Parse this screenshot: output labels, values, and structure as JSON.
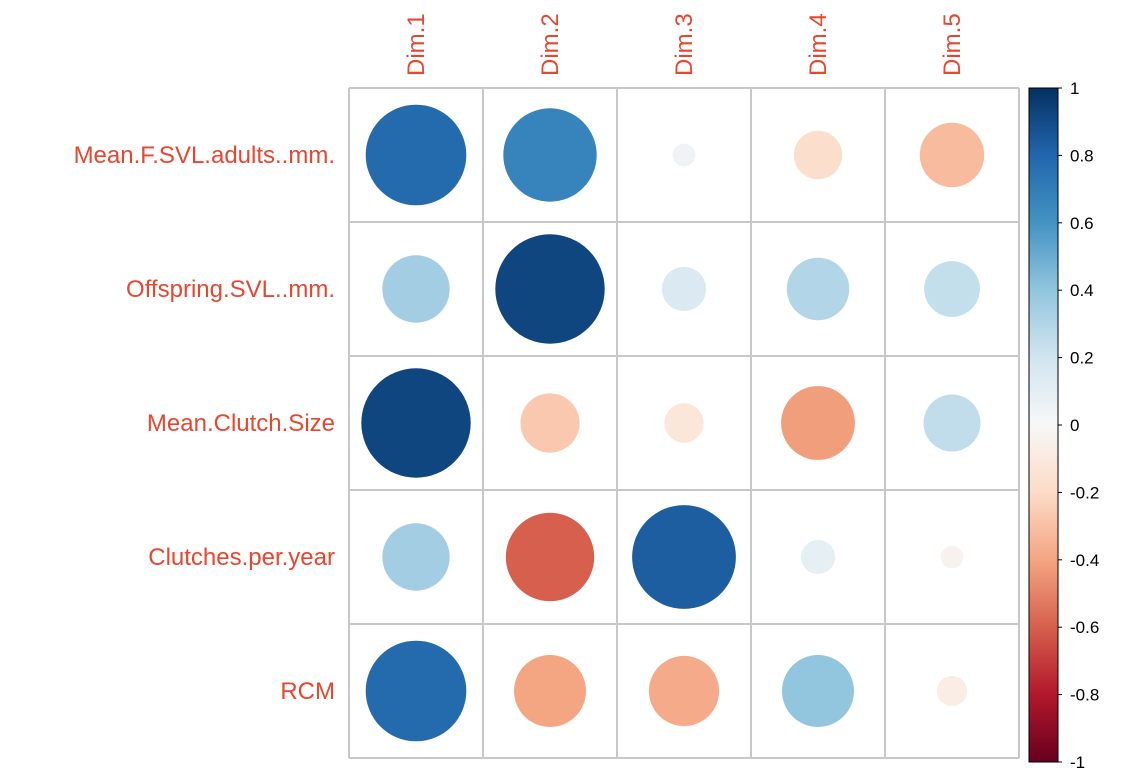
{
  "chart_data": {
    "type": "heatmap",
    "subtype": "correlation-circle-matrix",
    "rows": [
      "Mean.F.SVL.adults..mm.",
      "Offspring.SVL..mm.",
      "Mean.Clutch.Size",
      "Clutches.per.year",
      "RCM"
    ],
    "columns": [
      "Dim.1",
      "Dim.2",
      "Dim.3",
      "Dim.4",
      "Dim.5"
    ],
    "values": [
      [
        0.78,
        0.67,
        0.04,
        -0.18,
        -0.32
      ],
      [
        0.35,
        0.92,
        0.15,
        0.3,
        0.24
      ],
      [
        0.92,
        -0.27,
        -0.12,
        -0.42,
        0.25
      ],
      [
        0.35,
        -0.6,
        0.83,
        0.09,
        -0.04
      ],
      [
        0.78,
        -0.4,
        -0.38,
        0.4,
        -0.07
      ]
    ],
    "colorbar": {
      "range": [
        -1,
        1
      ],
      "ticks": [
        "1",
        "0.8",
        "0.6",
        "0.4",
        "0.2",
        "0",
        "-0.2",
        "-0.4",
        "-0.6",
        "-0.8",
        "-1"
      ],
      "position": "right"
    },
    "colors": {
      "positive": "#053061",
      "neutral": "#f7f7f7",
      "negative": "#67001f",
      "label": "#e8462f",
      "grid": "#c8c8c8"
    },
    "grid": true
  }
}
